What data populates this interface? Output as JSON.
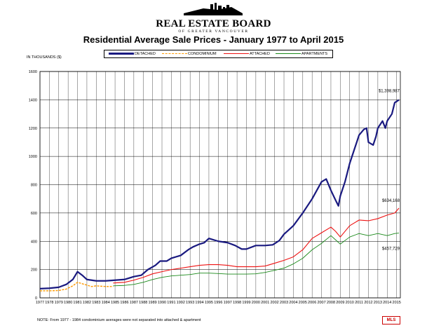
{
  "logo": {
    "name": "REAL ESTATE BOARD",
    "sub": "OF GREATER VANCOUVER"
  },
  "unit_label": "IN THOUSANDS ($)",
  "footnote": "NOTE: From 1977 - 1984 condominium averages were not separated into attached & apartment",
  "badge": "MLS",
  "colors": {
    "detached": "#1a1a80",
    "condominium": "#ff9900",
    "attached": "#ee1111",
    "apartments": "#1a8a1a"
  },
  "chart_data": {
    "type": "line",
    "title": "Residential Average Sale Prices  -  January 1977 to April 2015",
    "ylim": [
      0,
      1600
    ],
    "yticks": [
      0,
      200,
      400,
      600,
      800,
      1000,
      1200,
      1400,
      1600
    ],
    "grid": true,
    "legend_position": "top",
    "categories": [
      "1977",
      "1978",
      "1979",
      "1980",
      "1981",
      "1982",
      "1983",
      "1984",
      "1985",
      "1986",
      "1987",
      "1988",
      "1989",
      "1990",
      "1991",
      "1992",
      "1993",
      "1994",
      "1995",
      "1996",
      "1997",
      "1998",
      "1999",
      "2000",
      "2001",
      "2002",
      "2003",
      "2004",
      "2005",
      "2006",
      "2007",
      "2008",
      "2009",
      "2010",
      "2011",
      "2012",
      "2013",
      "2014",
      "2015"
    ],
    "series": [
      {
        "name": "DETACHED",
        "x": [
          1977.0,
          1978.0,
          1979.0,
          1979.8,
          1980.5,
          1981.0,
          1981.5,
          1982.0,
          1982.5,
          1983.0,
          1984.0,
          1985.0,
          1986.0,
          1987.0,
          1987.8,
          1988.5,
          1989.3,
          1989.8,
          1990.5,
          1991.0,
          1992.0,
          1992.8,
          1993.3,
          1994.0,
          1994.5,
          1995.0,
          1996.0,
          1997.0,
          1997.8,
          1998.5,
          1999.0,
          2000.0,
          2001.0,
          2001.8,
          2002.5,
          2003.0,
          2004.0,
          2005.0,
          2006.0,
          2006.5,
          2007.0,
          2007.5,
          2008.0,
          2008.5,
          2008.8,
          2009.0,
          2009.5,
          2010.0,
          2010.5,
          2011.0,
          2011.5,
          2011.8,
          2012.0,
          2012.5,
          2012.8,
          2013.0,
          2013.5,
          2013.8,
          2014.0,
          2014.5,
          2014.8,
          2015.25
        ],
        "values": [
          65,
          68,
          75,
          95,
          130,
          185,
          160,
          130,
          125,
          120,
          120,
          125,
          130,
          150,
          160,
          200,
          230,
          260,
          260,
          280,
          300,
          340,
          360,
          380,
          390,
          420,
          400,
          390,
          370,
          345,
          345,
          370,
          370,
          375,
          405,
          450,
          510,
          600,
          700,
          760,
          820,
          840,
          760,
          690,
          650,
          720,
          820,
          950,
          1050,
          1150,
          1190,
          1200,
          1100,
          1080,
          1140,
          1200,
          1250,
          1200,
          1250,
          1300,
          1380,
          1399
        ]
      },
      {
        "name": "CONDOMINIUM",
        "x": [
          1977.0,
          1978.0,
          1979.0,
          1979.8,
          1980.5,
          1981.0,
          1981.5,
          1982.0,
          1982.5,
          1983.0,
          1984.0,
          1984.8
        ],
        "values": [
          50,
          50,
          52,
          62,
          85,
          110,
          100,
          90,
          80,
          85,
          80,
          80
        ]
      },
      {
        "name": "ATTACHED",
        "x": [
          1984.8,
          1986.0,
          1987.0,
          1988.0,
          1989.0,
          1990.0,
          1991.0,
          1992.0,
          1993.0,
          1994.0,
          1995.0,
          1996.0,
          1997.0,
          1998.0,
          1999.0,
          2000.0,
          2001.0,
          2002.0,
          2003.0,
          2004.0,
          2005.0,
          2006.0,
          2007.0,
          2008.0,
          2008.5,
          2009.0,
          2010.0,
          2011.0,
          2012.0,
          2013.0,
          2014.0,
          2014.8,
          2015.25
        ],
        "values": [
          105,
          110,
          125,
          145,
          170,
          185,
          200,
          210,
          220,
          230,
          235,
          235,
          230,
          220,
          220,
          220,
          225,
          245,
          265,
          290,
          340,
          420,
          460,
          500,
          470,
          430,
          510,
          550,
          545,
          560,
          585,
          600,
          634
        ]
      },
      {
        "name": "APARTMENTS",
        "x": [
          1984.8,
          1986.0,
          1987.0,
          1988.0,
          1989.0,
          1990.0,
          1991.0,
          1992.0,
          1993.0,
          1994.0,
          1995.0,
          1996.0,
          1997.0,
          1998.0,
          1999.0,
          2000.0,
          2001.0,
          2002.0,
          2003.0,
          2004.0,
          2005.0,
          2006.0,
          2007.0,
          2008.0,
          2008.5,
          2009.0,
          2010.0,
          2011.0,
          2012.0,
          2013.0,
          2014.0,
          2014.8,
          2015.25
        ],
        "values": [
          85,
          88,
          95,
          110,
          130,
          145,
          155,
          160,
          165,
          175,
          175,
          172,
          168,
          168,
          168,
          170,
          180,
          195,
          210,
          240,
          280,
          340,
          385,
          440,
          410,
          380,
          430,
          455,
          440,
          455,
          440,
          455,
          458
        ]
      }
    ],
    "annotations": [
      {
        "text": "$1,398,987",
        "x": 2015.25,
        "y": 1398.987
      },
      {
        "text": "$634,168",
        "x": 2015.25,
        "y": 634.168
      },
      {
        "text": "$457,729",
        "x": 2015.25,
        "y": 457.729
      }
    ]
  }
}
